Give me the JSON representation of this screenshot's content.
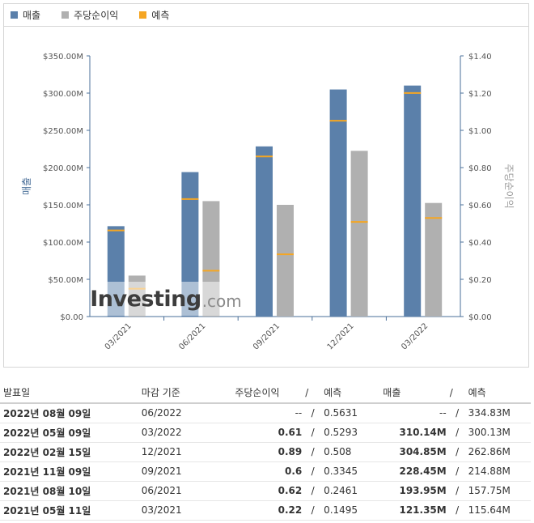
{
  "legend": [
    {
      "label": "매출",
      "color": "#5b80aa"
    },
    {
      "label": "주당순이익",
      "color": "#b0b0b0"
    },
    {
      "label": "예측",
      "color": "#f5a623"
    }
  ],
  "chart_data": {
    "type": "bar",
    "categories": [
      "03/2021",
      "06/2021",
      "09/2021",
      "12/2021",
      "03/2022"
    ],
    "series": [
      {
        "name": "매출",
        "axis": "left",
        "color": "#5b80aa",
        "values": [
          121.35,
          193.95,
          228.45,
          304.85,
          310.14
        ],
        "forecast": [
          115.64,
          157.75,
          214.88,
          262.86,
          300.13
        ]
      },
      {
        "name": "주당순이익",
        "axis": "right",
        "color": "#b0b0b0",
        "values": [
          0.22,
          0.62,
          0.6,
          0.89,
          0.61
        ],
        "forecast": [
          0.1495,
          0.2461,
          0.3345,
          0.508,
          0.5293
        ]
      }
    ],
    "forecast_color": "#f5a623",
    "ylabel_left": "매출",
    "ylabel_right": "주당순이익",
    "ylim_left": [
      0,
      350
    ],
    "ylim_right": [
      0,
      1.4
    ],
    "yticks_left": [
      "$0.00",
      "$50.00M",
      "$100.00M",
      "$150.00M",
      "$200.00M",
      "$250.00M",
      "$300.00M",
      "$350.00M"
    ],
    "yticks_right": [
      "$0.00",
      "$0.20",
      "$0.40",
      "$0.60",
      "$0.80",
      "$1.00",
      "$1.20",
      "$1.40"
    ],
    "grid": false,
    "legend_position": "top-left"
  },
  "watermark": {
    "main": "Investing",
    "sub": ".com"
  },
  "table": {
    "headers": {
      "date": "발표일",
      "period": "마감 기준",
      "eps": "주당순이익",
      "eps_forecast": "예측",
      "revenue": "매출",
      "revenue_forecast": "예측",
      "slash": "/"
    },
    "rows": [
      {
        "date": "2022년 08월 09일",
        "period": "06/2022",
        "eps": "--",
        "eps_forecast": "0.5631",
        "revenue": "--",
        "revenue_forecast": "334.83M",
        "beat": false
      },
      {
        "date": "2022년 05월 09일",
        "period": "03/2022",
        "eps": "0.61",
        "eps_forecast": "0.5293",
        "revenue": "310.14M",
        "revenue_forecast": "300.13M",
        "beat": true
      },
      {
        "date": "2022년 02월 15일",
        "period": "12/2021",
        "eps": "0.89",
        "eps_forecast": "0.508",
        "revenue": "304.85M",
        "revenue_forecast": "262.86M",
        "beat": true
      },
      {
        "date": "2021년 11월 09일",
        "period": "09/2021",
        "eps": "0.6",
        "eps_forecast": "0.3345",
        "revenue": "228.45M",
        "revenue_forecast": "214.88M",
        "beat": true
      },
      {
        "date": "2021년 08월 10일",
        "period": "06/2021",
        "eps": "0.62",
        "eps_forecast": "0.2461",
        "revenue": "193.95M",
        "revenue_forecast": "157.75M",
        "beat": true
      },
      {
        "date": "2021년 05월 11일",
        "period": "03/2021",
        "eps": "0.22",
        "eps_forecast": "0.1495",
        "revenue": "121.35M",
        "revenue_forecast": "115.64M",
        "beat": true
      }
    ]
  }
}
